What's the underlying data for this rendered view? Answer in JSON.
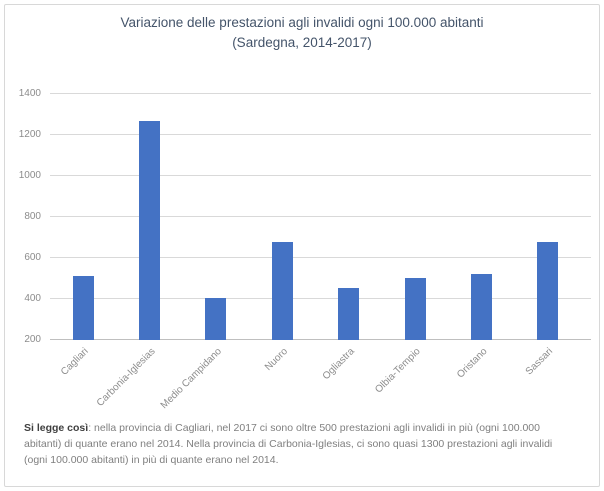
{
  "chart_data": {
    "type": "bar",
    "title": "Variazione delle prestazioni agli invalidi ogni 100.000 abitanti",
    "subtitle": "(Sardegna, 2014-2017)",
    "categories": [
      "Cagliari",
      "Carbonia-Iglesias",
      "Medio Campidano",
      "Nuoro",
      "Ogliastra",
      "Olbia-Tempio",
      "Oristano",
      "Sassari"
    ],
    "values": [
      510,
      1270,
      405,
      680,
      455,
      505,
      520,
      680
    ],
    "xlabel": "",
    "ylabel": "",
    "ylim": [
      200,
      1400
    ],
    "ytick_interval": 200,
    "yticks": [
      200,
      400,
      600,
      800,
      1000,
      1200,
      1400
    ],
    "grid": true,
    "legend": "none",
    "bar_color": "#4472C4"
  },
  "caption": {
    "lead": "Si legge così",
    "line1": ": nella provincia di Cagliari, nel 2017 ci sono oltre 500 prestazioni agli invalidi in più (ogni 100.000",
    "line2": "abitanti) di quante erano nel 2014. Nella provincia di Carbonia-Iglesias, ci sono quasi 1300 prestazioni agli invalidi",
    "line3": "(ogni 100.000 abitanti) in più di quante erano nel 2014."
  },
  "colors": {
    "bar": "#4472C4",
    "title": "#44546A",
    "axis_label": "#8C8C8C",
    "grid_line": "#D9D9D9",
    "axis_line": "#BFBFBF",
    "caption_lead": "#3F3F3F",
    "caption_text": "#7F7F7F",
    "frame_border": "#D8D8D8"
  }
}
